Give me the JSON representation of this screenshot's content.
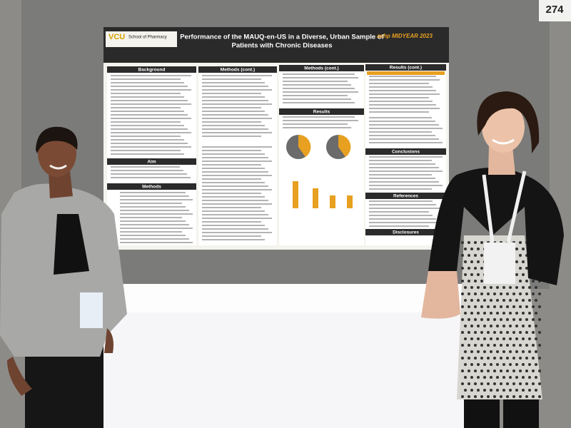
{
  "booth_number": "274",
  "poster": {
    "logo": "VCU",
    "school": "School of Pharmacy",
    "title_line1": "Performance of the MAUQ-en-US in a Diverse, Urban Sample of",
    "title_line2": "Patients with Chronic Diseases",
    "conference": "ashp MIDYEAR 2023",
    "sections": [
      "Background",
      "Aim",
      "Methods",
      "Methods (cont.)",
      "Methods (cont.)",
      "Results",
      "Results (cont.)",
      "Conclusions",
      "References",
      "Disclosures"
    ]
  }
}
